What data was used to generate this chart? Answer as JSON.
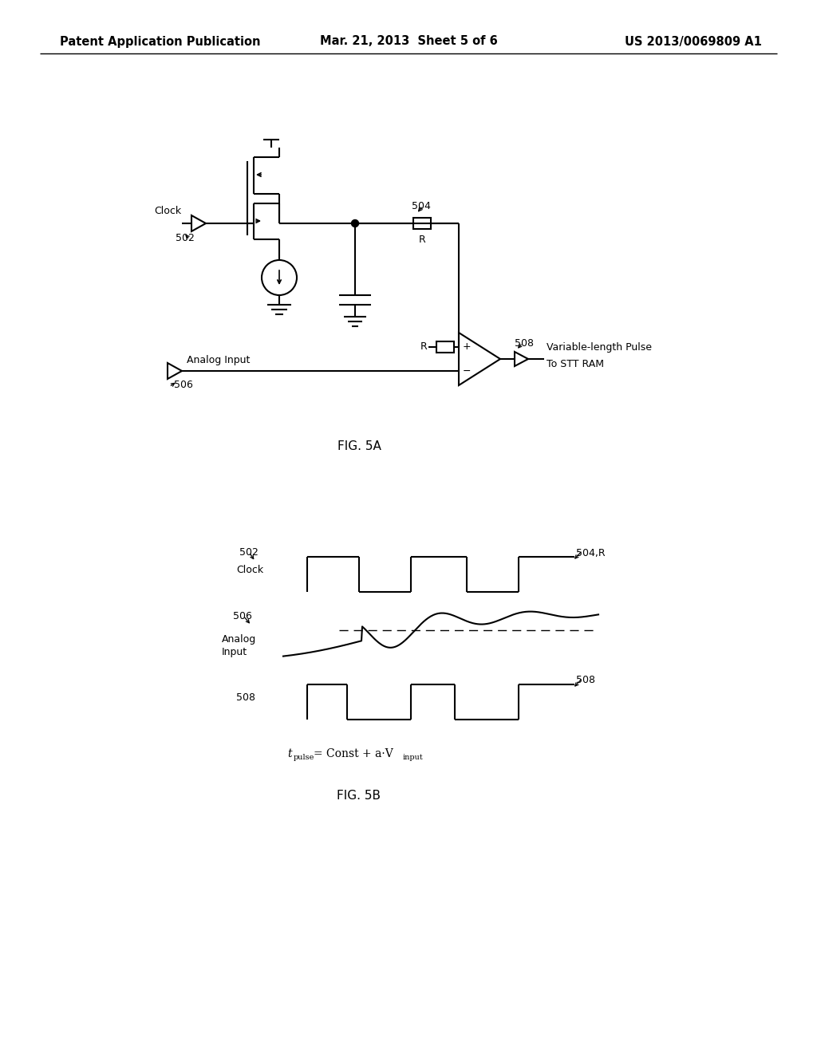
{
  "title_left": "Patent Application Publication",
  "title_center": "Mar. 21, 2013  Sheet 5 of 6",
  "title_right": "US 2013/0069809 A1",
  "fig5a_label": "FIG. 5A",
  "fig5b_label": "FIG. 5B",
  "background_color": "#ffffff",
  "line_color": "#000000"
}
